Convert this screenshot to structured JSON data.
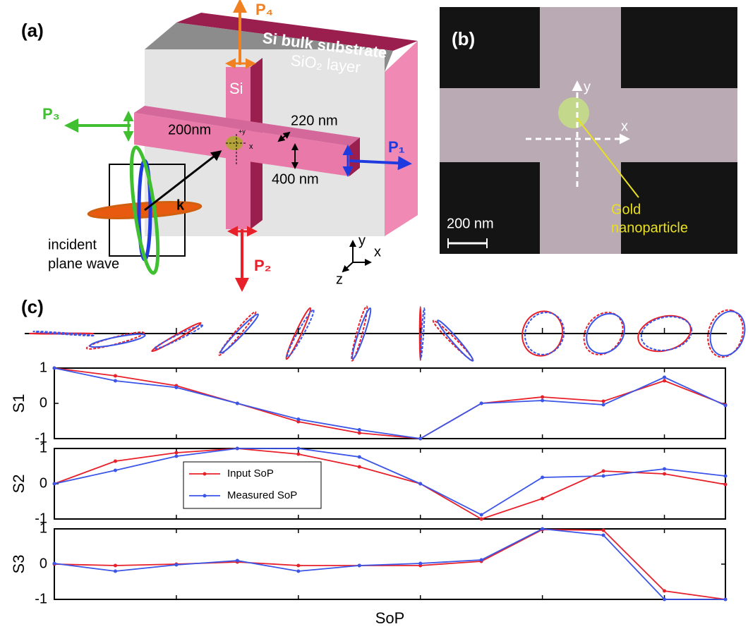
{
  "panel_a": {
    "label": "(a)",
    "substrate": "Si bulk substrate",
    "oxide": "SiO₂ layer",
    "si": "Si",
    "p1": "P₁",
    "p2": "P₂",
    "p3": "P₃",
    "p4": "P₄",
    "width1": "200nm",
    "height": "220 nm",
    "width2": "400 nm",
    "k": "k",
    "incident1": "incident",
    "incident2": "plane wave",
    "small_y": "+y",
    "small_x": "x",
    "axis_y": "y",
    "axis_x": "x",
    "axis_z": "z"
  },
  "panel_b": {
    "label": "(b)",
    "y": "y",
    "x": "x",
    "scale": "200 nm",
    "gold1": "Gold",
    "gold2": "nanoparticle"
  },
  "panel_c": {
    "label": "(c)"
  },
  "chart_data": [
    {
      "type": "line",
      "ylabel": "S1",
      "categories": [
        null,
        null,
        null,
        null,
        null,
        null,
        null,
        null,
        null,
        null,
        null,
        null
      ],
      "ylim": [
        -1,
        1
      ],
      "yticks": [
        -1,
        0,
        1
      ],
      "series": [
        {
          "name": "Input SoP",
          "color": "#e8202a",
          "values": [
            1.0,
            0.78,
            0.5,
            0,
            -0.52,
            -0.84,
            -1.0,
            0,
            0.18,
            0.06,
            0.64,
            -0.04
          ]
        },
        {
          "name": "Measured SoP",
          "color": "#3a55e8",
          "values": [
            1.0,
            0.64,
            0.45,
            0,
            -0.45,
            -0.75,
            -1.0,
            0,
            0.08,
            -0.04,
            0.74,
            -0.06
          ]
        }
      ]
    },
    {
      "type": "line",
      "ylabel": "S2",
      "categories": [
        null,
        null,
        null,
        null,
        null,
        null,
        null,
        null,
        null,
        null,
        null,
        null
      ],
      "ylim": [
        -1,
        1
      ],
      "yticks": [
        -1,
        0,
        1
      ],
      "legend": "center left",
      "series": [
        {
          "name": "Input SoP",
          "color": "#e8202a",
          "values": [
            0,
            0.64,
            0.88,
            1.0,
            0.84,
            0.48,
            0,
            -1.0,
            -0.42,
            0.36,
            0.28,
            -0.02
          ]
        },
        {
          "name": "Measured SoP",
          "color": "#3a55e8",
          "values": [
            0,
            0.38,
            0.78,
            1.0,
            1.0,
            0.76,
            0,
            -0.88,
            0.18,
            0.22,
            0.42,
            0.22
          ]
        }
      ]
    },
    {
      "type": "line",
      "ylabel": "S3",
      "xlabel": "SoP",
      "categories": [
        null,
        null,
        null,
        null,
        null,
        null,
        null,
        null,
        null,
        null,
        null,
        null
      ],
      "ylim": [
        -1,
        1
      ],
      "yticks": [
        -1,
        0,
        1
      ],
      "series": [
        {
          "name": "Input SoP",
          "color": "#e8202a",
          "values": [
            0,
            -0.04,
            0,
            0.06,
            -0.04,
            -0.04,
            -0.04,
            0.08,
            0.98,
            0.96,
            -0.76,
            -1.0
          ]
        },
        {
          "name": "Measured SoP",
          "color": "#3a55e8",
          "values": [
            0.02,
            -0.2,
            -0.02,
            0.1,
            -0.2,
            -0.04,
            0.02,
            0.12,
            1.0,
            0.82,
            -1.0,
            -1.0
          ]
        }
      ]
    }
  ]
}
